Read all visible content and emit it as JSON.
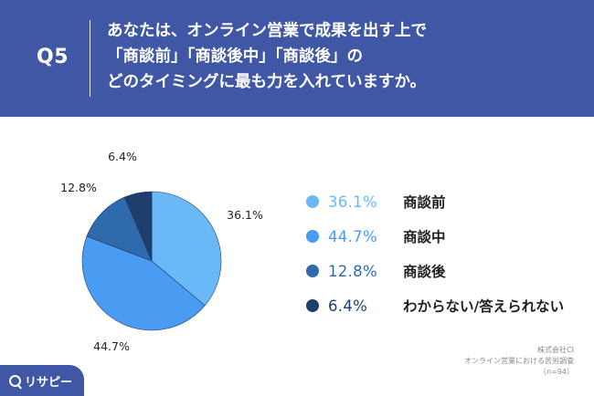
{
  "header": {
    "question_label": "Q5",
    "question_lines": [
      "あなたは、オンライン営業で成果を出す上で",
      "「商談前」「商談後中」「商談後」の",
      "どのタイミングに最も力を入れていますか。"
    ]
  },
  "chart_data": {
    "type": "pie",
    "title": "",
    "start_angle_deg": 0,
    "direction": "clockwise",
    "slices": [
      {
        "label": "商談前",
        "value": 36.1,
        "display": "36.1%",
        "color": "#6bb8f6"
      },
      {
        "label": "商談中",
        "value": 44.7,
        "display": "44.7%",
        "color": "#4a9bf2"
      },
      {
        "label": "商談後",
        "value": 12.8,
        "display": "12.8%",
        "color": "#2f6aad"
      },
      {
        "label": "わからない/答えられない",
        "value": 6.4,
        "display": "6.4%",
        "color": "#1e3f6b"
      }
    ]
  },
  "credit": {
    "line1": "株式会社CI",
    "line2": "オンライン営業における苦労調査",
    "line3": "（n=94）"
  },
  "logo": {
    "text": "リサピー"
  },
  "colors": {
    "background": "#3f57a4",
    "card": "#ffffff"
  }
}
